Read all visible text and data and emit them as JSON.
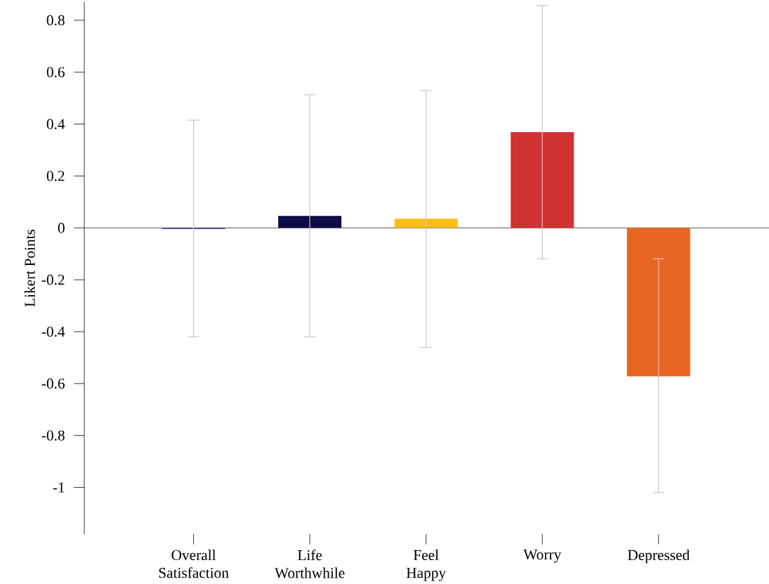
{
  "chart_data": {
    "type": "bar",
    "ylabel": "Likert Points",
    "categories": [
      "Overall Satisfaction",
      "Life Worthwhile",
      "Feel Happy",
      "Worry",
      "Depressed"
    ],
    "values": [
      -0.005,
      0.046,
      0.035,
      0.369,
      -0.572
    ],
    "colors": [
      "#4b4b8f",
      "#0d0a45",
      "#fdbd15",
      "#d13232",
      "#e96522"
    ],
    "errors": [
      [
        -0.42,
        0.415
      ],
      [
        -0.42,
        0.513
      ],
      [
        -0.461,
        0.529
      ],
      [
        -0.119,
        0.857
      ],
      [
        -1.02,
        -0.119
      ]
    ],
    "ylim": [
      -1.18,
      0.87
    ],
    "yticks": [
      -1,
      -0.8,
      -0.6,
      -0.4,
      -0.2,
      0,
      0.2,
      0.4,
      0.6,
      0.8
    ],
    "ref_lines": [
      {
        "axis": "y",
        "value": 0,
        "color": "#555555"
      }
    ]
  }
}
